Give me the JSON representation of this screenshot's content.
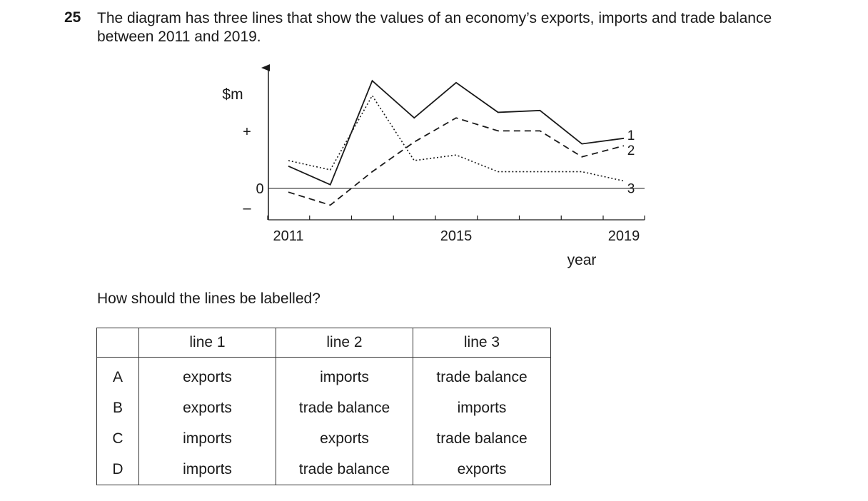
{
  "question": {
    "number": "25",
    "text": "The diagram has three lines that show the values of an economy’s exports, imports and trade balance between 2011 and 2019.",
    "prompt": "How should the lines be labelled?"
  },
  "chart_data": {
    "type": "line",
    "ylabel": "$m",
    "xlabel": "year",
    "y_markers": {
      "plus": "+",
      "zero": "0",
      "minus": "–"
    },
    "x": [
      2011,
      2012,
      2013,
      2014,
      2015,
      2016,
      2017,
      2018,
      2019
    ],
    "x_tick_labels": [
      {
        "x": 2011,
        "label": "2011"
      },
      {
        "x": 2015,
        "label": "2015"
      },
      {
        "x": 2019,
        "label": "2019"
      }
    ],
    "series": [
      {
        "name": "1",
        "style": "solid",
        "values": [
          1.2,
          0.2,
          5.8,
          3.8,
          5.7,
          4.1,
          4.2,
          2.4,
          2.7
        ]
      },
      {
        "name": "2",
        "style": "dashed",
        "values": [
          -0.2,
          -0.9,
          0.9,
          2.5,
          3.8,
          3.1,
          3.1,
          1.7,
          2.3
        ]
      },
      {
        "name": "3",
        "style": "dotted",
        "values": [
          1.5,
          1.0,
          5.0,
          1.5,
          1.8,
          0.9,
          0.9,
          0.9,
          0.4
        ]
      }
    ],
    "ylim": [
      -1.7,
      6.5
    ],
    "grid": false
  },
  "table": {
    "headers": [
      "",
      "line 1",
      "line 2",
      "line 3"
    ],
    "rows": [
      [
        "A",
        "exports",
        "imports",
        "trade balance"
      ],
      [
        "B",
        "exports",
        "trade balance",
        "imports"
      ],
      [
        "C",
        "imports",
        "exports",
        "trade balance"
      ],
      [
        "D",
        "imports",
        "trade balance",
        "exports"
      ]
    ]
  }
}
